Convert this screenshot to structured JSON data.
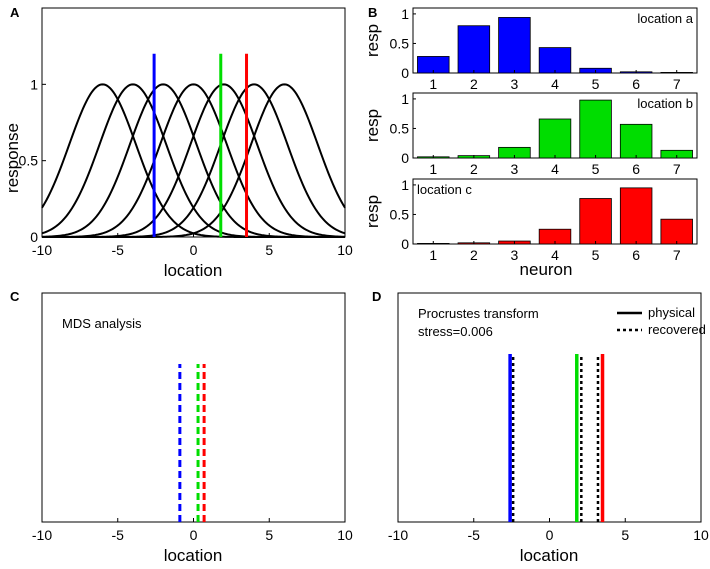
{
  "chart_data": [
    {
      "panel": "A",
      "type": "line",
      "xlabel": "location",
      "ylabel": "response",
      "xlim": [
        -10,
        10
      ],
      "ylim": [
        0,
        1.5
      ],
      "xticks": [
        "-10",
        "-5",
        "0",
        "5",
        "10"
      ],
      "yticks": [
        "0",
        "0.5",
        "1"
      ],
      "tuning_curves": {
        "centers": [
          -6,
          -4,
          -2,
          0,
          2,
          4,
          6
        ],
        "sigma": 2.2,
        "peak": 1,
        "color": "#000000"
      },
      "markers": [
        {
          "name": "location a",
          "x": -2.6,
          "color": "#0000ff",
          "y_top": 1.2
        },
        {
          "name": "location b",
          "x": 1.8,
          "color": "#00dd00",
          "y_top": 1.2
        },
        {
          "name": "location c",
          "x": 3.5,
          "color": "#ff0000",
          "y_top": 1.2
        }
      ]
    },
    {
      "panel": "B",
      "type": "bar",
      "xlabel": "neuron",
      "ylabel": "resp",
      "categories": [
        "1",
        "2",
        "3",
        "4",
        "5",
        "6",
        "7"
      ],
      "yticks": [
        "0",
        "0.5",
        "1"
      ],
      "ylim": [
        0,
        1.1
      ],
      "subplots": [
        {
          "label": "location a",
          "label_pos": "top-right",
          "color": "#0000ff",
          "values": [
            0.28,
            0.8,
            0.94,
            0.43,
            0.08,
            0.02,
            0.01
          ]
        },
        {
          "label": "location b",
          "label_pos": "top-right",
          "color": "#00dd00",
          "values": [
            0.02,
            0.04,
            0.18,
            0.66,
            0.98,
            0.57,
            0.13
          ]
        },
        {
          "label": "location c",
          "label_pos": "top-left",
          "color": "#ff0000",
          "values": [
            0.01,
            0.02,
            0.05,
            0.25,
            0.77,
            0.95,
            0.42
          ]
        }
      ]
    },
    {
      "panel": "C",
      "type": "line",
      "title": "MDS analysis",
      "xlabel": "location",
      "xlim": [
        -10,
        10
      ],
      "xticks": [
        "-10",
        "-5",
        "0",
        "5",
        "10"
      ],
      "lines": [
        {
          "x": -0.9,
          "color": "#0000ff",
          "style": "dashed"
        },
        {
          "x": 0.3,
          "color": "#00dd00",
          "style": "dashed"
        },
        {
          "x": 0.7,
          "color": "#ff0000",
          "style": "dashed"
        }
      ]
    },
    {
      "panel": "D",
      "type": "line",
      "title": "Procrustes transform",
      "subtitle": "stress=0.006",
      "xlabel": "location",
      "xlim": [
        -10,
        10
      ],
      "xticks": [
        "-10",
        "-5",
        "0",
        "5",
        "10"
      ],
      "legend": [
        {
          "label": "physical",
          "style": "solid"
        },
        {
          "label": "recovered",
          "style": "dotted"
        }
      ],
      "physical": [
        {
          "x": -2.6,
          "color": "#0000ff"
        },
        {
          "x": 1.8,
          "color": "#00dd00"
        },
        {
          "x": 3.5,
          "color": "#ff0000"
        }
      ],
      "recovered": [
        {
          "x": -2.4,
          "color": "#0000ff"
        },
        {
          "x": 2.1,
          "color": "#00dd00"
        },
        {
          "x": 3.2,
          "color": "#ff0000"
        }
      ]
    }
  ]
}
